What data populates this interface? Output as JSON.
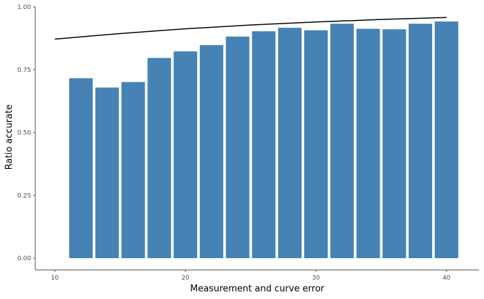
{
  "chart_data": {
    "type": "bar",
    "title": "",
    "xlabel": "Measurement and curve error",
    "ylabel": "Ratio accurate",
    "xlim": [
      8.5,
      42.5
    ],
    "ylim": [
      0,
      1.0
    ],
    "x_ticks": [
      10,
      20,
      30,
      40
    ],
    "x_tick_labels": [
      "10",
      "20",
      "30",
      "40"
    ],
    "y_ticks": [
      0,
      0.25,
      0.5,
      0.75,
      1.0
    ],
    "y_tick_labels": [
      "0.00",
      "0.25",
      "0.50",
      "0.75",
      "1.00"
    ],
    "bar_color": "#4682b4",
    "line_color": "#000000",
    "grid": false,
    "bars": {
      "x": [
        12,
        14,
        16,
        18,
        20,
        22,
        24,
        26,
        28,
        30,
        32,
        34,
        36,
        38,
        40
      ],
      "values": [
        0.716,
        0.679,
        0.701,
        0.797,
        0.823,
        0.848,
        0.882,
        0.903,
        0.917,
        0.907,
        0.933,
        0.913,
        0.911,
        0.933,
        0.942
      ],
      "width": 1.8
    },
    "line": {
      "x": [
        10,
        15,
        20,
        25,
        30,
        35,
        40
      ],
      "y": [
        0.872,
        0.894,
        0.913,
        0.928,
        0.94,
        0.95,
        0.958
      ]
    }
  }
}
